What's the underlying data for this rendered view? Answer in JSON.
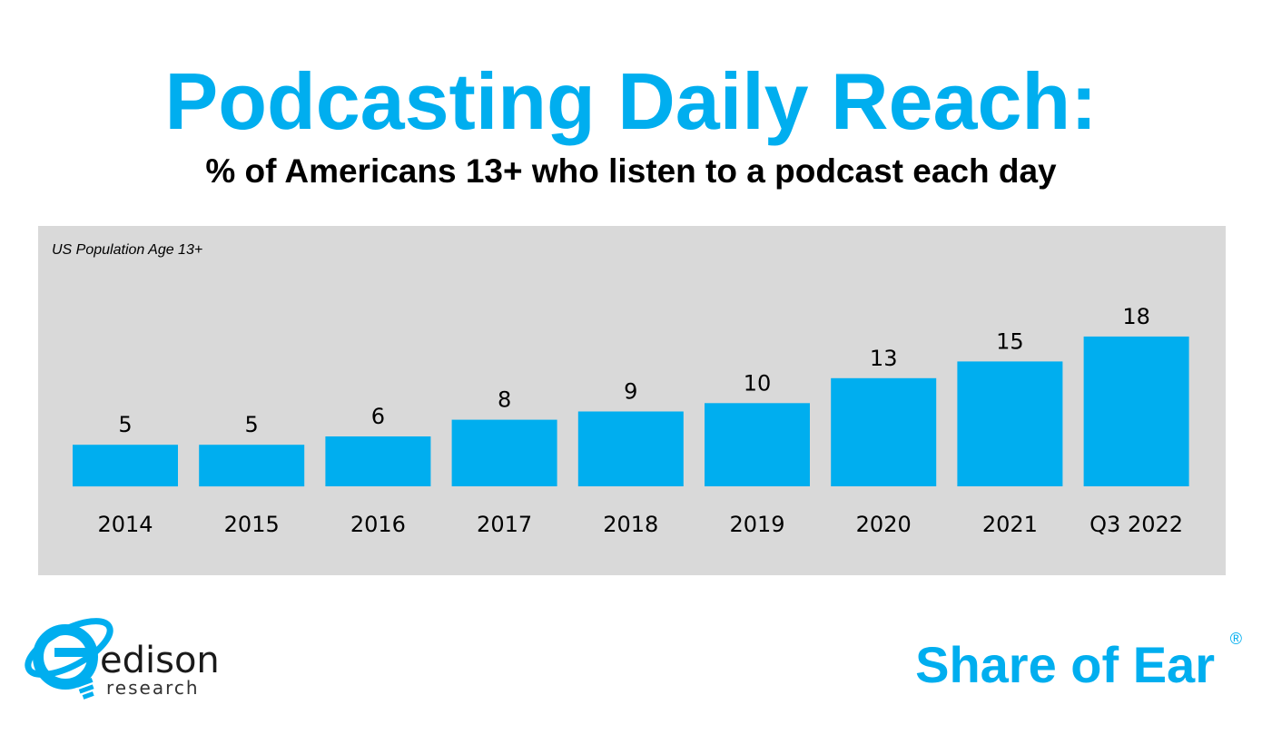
{
  "header": {
    "title": "Podcasting Daily Reach:",
    "subtitle": "% of Americans 13+ who listen to a podcast each day"
  },
  "colors": {
    "accent": "#00aeef",
    "panel": "#d9d9d9",
    "text": "#000000"
  },
  "chart_data": {
    "type": "bar",
    "annotation": "US Population Age 13+",
    "categories": [
      "2014",
      "2015",
      "2016",
      "2017",
      "2018",
      "2019",
      "2020",
      "2021",
      "Q3 2022"
    ],
    "values": [
      5,
      5,
      6,
      8,
      9,
      10,
      13,
      15,
      18
    ],
    "data_labels": [
      "5",
      "5",
      "6",
      "8",
      "9",
      "10",
      "13",
      "15",
      "18"
    ],
    "color": "#00aeef",
    "grid": false,
    "legend": "none",
    "y_axis_visible": false
  },
  "footer": {
    "logo_word": "edison",
    "logo_sub": "research",
    "logo_icon": "edison-lightbulb-orbit-icon",
    "brand": "Share of Ear",
    "registered_mark": "®"
  }
}
